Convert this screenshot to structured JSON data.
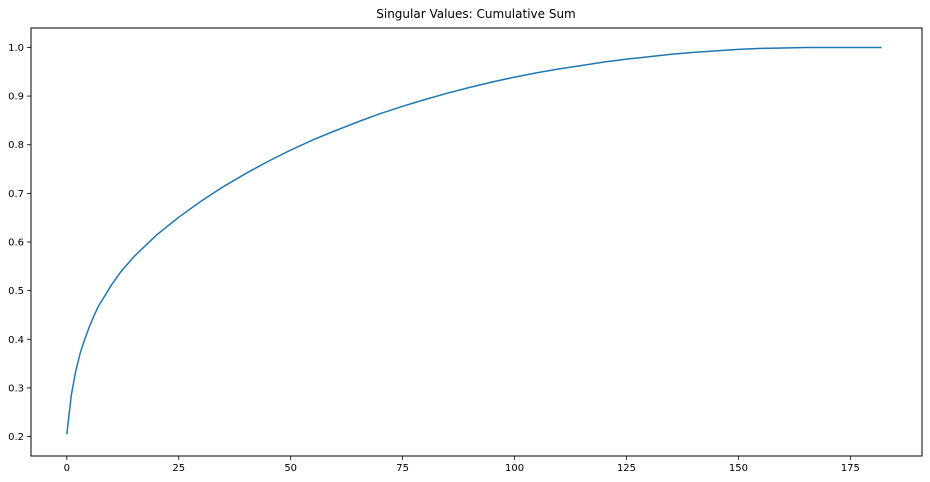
{
  "chart_data": {
    "type": "line",
    "title": "Singular Values: Cumulative Sum",
    "xlabel": "",
    "ylabel": "",
    "xlim": [
      -8,
      191
    ],
    "ylim": [
      0.16,
      1.04
    ],
    "x_ticks": [
      0,
      25,
      50,
      75,
      100,
      125,
      150,
      175
    ],
    "y_ticks": [
      0.2,
      0.3,
      0.4,
      0.5,
      0.6,
      0.7,
      0.8,
      0.9,
      1.0
    ],
    "y_tick_labels": [
      "0.2",
      "0.3",
      "0.4",
      "0.5",
      "0.6",
      "0.7",
      "0.8",
      "0.9",
      "1.0"
    ],
    "grid": false,
    "series": [
      {
        "color": "#1f77b4",
        "x": [
          0,
          1,
          2,
          3,
          4,
          5,
          6,
          7,
          8,
          10,
          12,
          15,
          20,
          25,
          30,
          35,
          40,
          45,
          50,
          55,
          60,
          65,
          70,
          75,
          80,
          85,
          90,
          95,
          100,
          105,
          110,
          115,
          120,
          125,
          130,
          135,
          140,
          145,
          150,
          155,
          160,
          165,
          170,
          175,
          180,
          182
        ],
        "y": [
          0.205,
          0.285,
          0.335,
          0.372,
          0.4,
          0.425,
          0.447,
          0.467,
          0.482,
          0.512,
          0.538,
          0.57,
          0.614,
          0.651,
          0.684,
          0.714,
          0.741,
          0.766,
          0.789,
          0.81,
          0.829,
          0.847,
          0.864,
          0.879,
          0.893,
          0.906,
          0.918,
          0.929,
          0.939,
          0.948,
          0.956,
          0.963,
          0.97,
          0.976,
          0.981,
          0.986,
          0.99,
          0.993,
          0.996,
          0.998,
          0.999,
          1.0,
          1.0,
          1.0,
          1.0,
          1.0
        ]
      }
    ]
  }
}
